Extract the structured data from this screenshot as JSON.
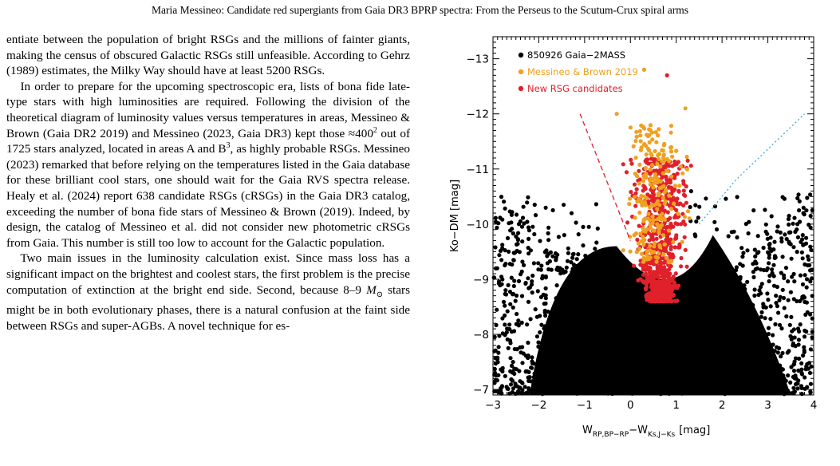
{
  "header": "Maria Messineo: Candidate red supergiants from Gaia DR3 BPRP spectra: From the Perseus to the Scutum-Crux spiral arms",
  "body": {
    "p1": "entiate between the population of bright RSGs and the millions of fainter giants, making the census of obscured Galactic RSGs still unfeasible. According to Gehrz (1989) estimates, the Milky Way should have at least 5200 RSGs.",
    "p2_a": "In order to prepare for the upcoming spectroscopic era, lists of bona fide late-type stars with high luminosities are required. Following the division of the theoretical diagram of luminosity values versus temperatures in areas, Messineo & Brown (Gaia DR2 2019) and Messineo (2023, Gaia DR3) kept those ≈400",
    "p2_sup1": "2",
    "p2_b": " out of 1725 stars analyzed, located in areas A and B",
    "p2_sup2": "3",
    "p2_c": ", as highly probable RSGs. Messineo (2023) remarked that before relying on the temperatures listed in the Gaia database for these brilliant cool stars, one should wait for the Gaia RVS spectra release. Healy et al. (2024) report 638 candidate RSGs (cRSGs) in the Gaia DR3 catalog, exceeding the number of bona fide stars of Messineo & Brown (2019). Indeed, by design, the catalog of Messineo et al. did not consider new photometric cRSGs from Gaia. This number is still too low to account for the Galactic population.",
    "p3_a": "Two main issues in the luminosity calculation exist. Since mass loss has a significant impact on the brightest and coolest stars, the first problem is the precise computation of extinction at the bright end side. Second, because 8–9 ",
    "p3_m": "M",
    "p3_sun": "⊙",
    "p3_b": " stars might be in both evolutionary phases, there is a natural confusion at the faint side between RSGs and super-AGBs. A novel technique for es-"
  },
  "chart_data": {
    "type": "scatter",
    "xlabel_main": "W",
    "xlabel_sub1": "RP,BP−RP",
    "xlabel_mid": "−W",
    "xlabel_sub2": "Ks,J−Ks",
    "xlabel_unit": "[mag]",
    "ylabel": "Ko−DM  [mag]",
    "xlim": [
      -3,
      4
    ],
    "ylim": [
      -6.9,
      -13.4
    ],
    "xticks": [
      "−3",
      "−2",
      "−1",
      "0",
      "1",
      "2",
      "3",
      "4"
    ],
    "yticks": [
      "−7",
      "−8",
      "−9",
      "−10",
      "−11",
      "−12",
      "−13"
    ],
    "colors": {
      "gaia": "#000000",
      "mb2019": "#f0a020",
      "new": "#e0202a",
      "red_line": "#e0202a",
      "blue_line": "#40a8d8"
    },
    "legend": [
      {
        "label": "850926 Gaia−2MASS",
        "color": "#000000"
      },
      {
        "label": "Messineo & Brown 2019",
        "color": "#f0a020"
      },
      {
        "label": "New RSG candidates",
        "color": "#e0202a"
      }
    ],
    "red_line": [
      [
        -1.1,
        -12.0
      ],
      [
        0.0,
        -9.7
      ]
    ],
    "blue_line": [
      [
        1.5,
        -10.0
      ],
      [
        2.3,
        -10.8
      ],
      [
        3.8,
        -12.0
      ]
    ]
  }
}
